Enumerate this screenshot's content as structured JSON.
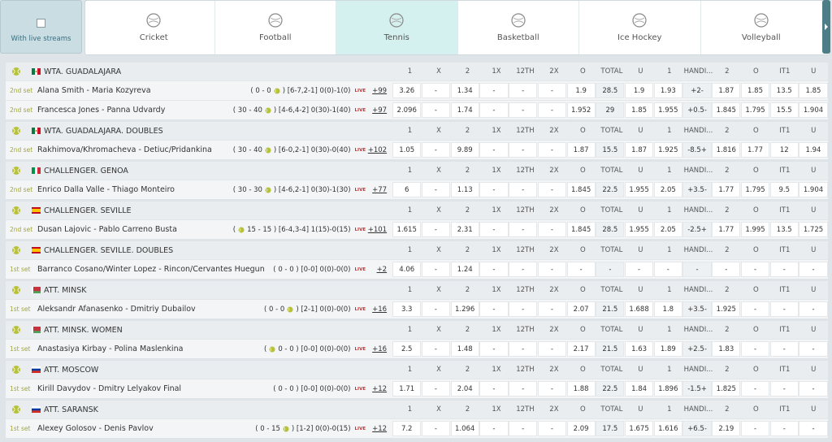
{
  "filter": {
    "label": "With live streams"
  },
  "sports": [
    "Cricket",
    "Football",
    "Tennis",
    "Basketball",
    "Ice Hockey",
    "Volleyball"
  ],
  "columns": [
    "1",
    "X",
    "2",
    "1X",
    "12TH",
    "2X",
    "O",
    "TOTAL",
    "U",
    "1",
    "HANDI...",
    "2",
    "O",
    "IT1",
    "U"
  ],
  "live_label": "LIVE",
  "leagues": [
    {
      "name": "WTA. GUADALAJARA",
      "matches": [
        {
          "period": "2nd set",
          "players": "Alana Smith - Maria Kozyreva",
          "score_pre": "( 0 - 0",
          "score_post": ") [6-7,2-1] 0(0)-1(0)",
          "more": "+99",
          "odds": [
            "3.26",
            "-",
            "1.34",
            "-",
            "-",
            "-",
            "1.9",
            "28.5",
            "1.9",
            "1.93",
            "+2-",
            "1.87",
            "1.85",
            "13.5",
            "1.85"
          ]
        },
        {
          "period": "2nd set",
          "players": "Francesca Jones - Panna Udvardy",
          "score_pre": "( 30 - 40",
          "score_post": ") [4-6,4-2] 0(30)-1(40)",
          "more": "+97",
          "odds": [
            "2.096",
            "-",
            "1.74",
            "-",
            "-",
            "-",
            "1.952",
            "29",
            "1.85",
            "1.955",
            "+0.5-",
            "1.845",
            "1.795",
            "15.5",
            "1.904"
          ]
        }
      ]
    },
    {
      "name": "WTA. GUADALAJARA. DOUBLES",
      "matches": [
        {
          "period": "2nd set",
          "players": "Rakhimova/Khromacheva - Detiuc/Pridankina",
          "score_pre": "( 30 - 40",
          "score_post": ") [6-0,2-1] 0(30)-0(40)",
          "more": "+102",
          "odds": [
            "1.05",
            "-",
            "9.89",
            "-",
            "-",
            "-",
            "1.87",
            "15.5",
            "1.87",
            "1.925",
            "-8.5+",
            "1.816",
            "1.77",
            "12",
            "1.94"
          ]
        }
      ]
    },
    {
      "name": "CHALLENGER. GENOA",
      "matches": [
        {
          "period": "2nd set",
          "players": "Enrico Dalla Valle - Thiago Monteiro",
          "score_pre": "( 30 - 30",
          "score_post": ") [4-6,2-1] 0(30)-1(30)",
          "more": "+77",
          "odds": [
            "6",
            "-",
            "1.13",
            "-",
            "-",
            "-",
            "1.845",
            "22.5",
            "1.955",
            "2.05",
            "+3.5-",
            "1.77",
            "1.795",
            "9.5",
            "1.904"
          ]
        }
      ]
    },
    {
      "name": "CHALLENGER. SEVILLE",
      "matches": [
        {
          "period": "2nd set",
          "players": "Dusan Lajovic - Pablo Carreno Busta",
          "score_pre": "(",
          "score_post": "15 - 15 ) [6-4,3-4] 1(15)-0(15)",
          "more": "+101",
          "odds": [
            "1.615",
            "-",
            "2.31",
            "-",
            "-",
            "-",
            "1.845",
            "28.5",
            "1.955",
            "2.05",
            "-2.5+",
            "1.77",
            "1.995",
            "13.5",
            "1.725"
          ]
        }
      ]
    },
    {
      "name": "CHALLENGER. SEVILLE. DOUBLES",
      "matches": [
        {
          "period": "1st set",
          "players": "Barranco Cosano/Winter Lopez - Rincon/Cervantes Huegun",
          "score_pre": "( 0 - 0 ) [0-0] 0(0)-0(0)",
          "more": "+2",
          "odds": [
            "4.06",
            "-",
            "1.24",
            "-",
            "-",
            "-",
            "-",
            "-",
            "-",
            "-",
            "-",
            "-",
            "-",
            "-",
            "-"
          ]
        }
      ]
    },
    {
      "name": "ATT. MINSK",
      "matches": [
        {
          "period": "1st set",
          "players": "Aleksandr Afanasenko - Dmitriy Dubailov",
          "score_pre": "( 0 - 0",
          "score_post": ") [2-1] 0(0)-0(0)",
          "more": "+16",
          "odds": [
            "3.3",
            "-",
            "1.296",
            "-",
            "-",
            "-",
            "2.07",
            "21.5",
            "1.688",
            "1.8",
            "+3.5-",
            "1.925",
            "-",
            "-",
            "-"
          ]
        }
      ]
    },
    {
      "name": "ATT. MINSK. WOMEN",
      "matches": [
        {
          "period": "1st set",
          "players": "Anastasiya Kirbay - Polina Maslenkina",
          "score_pre": "(",
          "score_post": "0 - 0 ) [0-0] 0(0)-0(0)",
          "more": "+16",
          "odds": [
            "2.5",
            "-",
            "1.48",
            "-",
            "-",
            "-",
            "2.17",
            "21.5",
            "1.63",
            "1.89",
            "+2.5-",
            "1.83",
            "-",
            "-",
            "-"
          ]
        }
      ]
    },
    {
      "name": "ATT. MOSCOW",
      "matches": [
        {
          "period": "1st set",
          "players": "Kirill Davydov - Dmitry Lelyakov Final",
          "score_pre": "( 0 - 0 ) [0-0] 0(0)-0(0)",
          "more": "+12",
          "odds": [
            "1.71",
            "-",
            "2.04",
            "-",
            "-",
            "-",
            "1.88",
            "22.5",
            "1.84",
            "1.896",
            "-1.5+",
            "1.825",
            "-",
            "-",
            "-"
          ]
        }
      ]
    },
    {
      "name": "ATT. SARANSK",
      "matches": [
        {
          "period": "1st set",
          "players": "Alexey Golosov - Denis Pavlov",
          "score_pre": "( 0 - 15",
          "score_post": ") [1-2] 0(0)-0(15)",
          "more": "+12",
          "odds": [
            "7.2",
            "-",
            "1.064",
            "-",
            "-",
            "-",
            "2.09",
            "17.5",
            "1.675",
            "1.616",
            "+6.5-",
            "2.19",
            "-",
            "-",
            "-"
          ]
        }
      ]
    }
  ]
}
